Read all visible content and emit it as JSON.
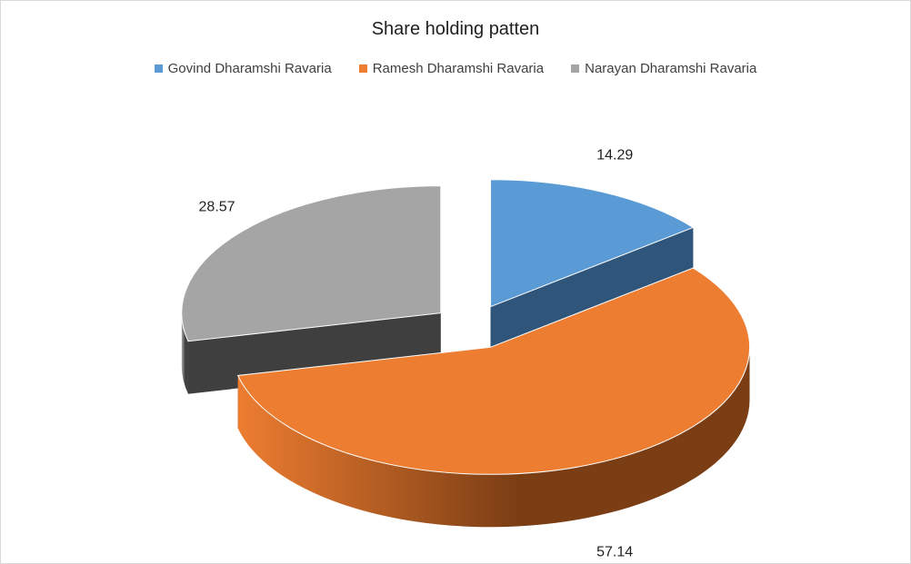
{
  "chart_data": {
    "type": "pie",
    "title": "Share holding patten",
    "legend_position": "top",
    "exploded": true,
    "style": "3d",
    "slices": [
      {
        "label": "Govind Dharamshi Ravaria",
        "value": 14.29,
        "data_label": "14.29",
        "color": "#5b9bd5",
        "side_color": "#30557a"
      },
      {
        "label": "Ramesh Dharamshi Ravaria",
        "value": 57.14,
        "data_label": "57.14",
        "color": "#ed7d31",
        "side_color": "#7a3d14"
      },
      {
        "label": "Narayan Dharamshi Ravaria",
        "value": 28.57,
        "data_label": "28.57",
        "color": "#a5a5a5",
        "side_color": "#3f3f3f"
      }
    ]
  }
}
